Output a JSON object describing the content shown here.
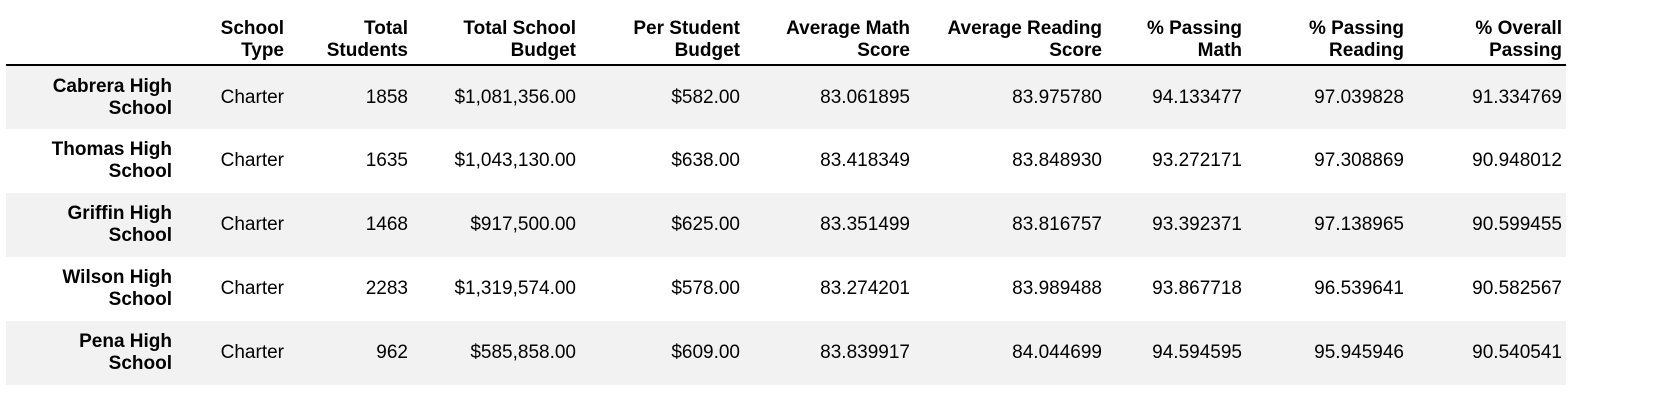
{
  "columns": [
    {
      "line1": "",
      "line2": ""
    },
    {
      "line1": "School",
      "line2": "Type"
    },
    {
      "line1": "Total",
      "line2": "Students"
    },
    {
      "line1": "Total School",
      "line2": "Budget"
    },
    {
      "line1": "Per Student",
      "line2": "Budget"
    },
    {
      "line1": "Average Math",
      "line2": "Score"
    },
    {
      "line1": "Average Reading",
      "line2": "Score"
    },
    {
      "line1": "% Passing",
      "line2": "Math"
    },
    {
      "line1": "% Passing",
      "line2": "Reading"
    },
    {
      "line1": "% Overall",
      "line2": "Passing"
    }
  ],
  "rows": [
    {
      "name1": "Cabrera High",
      "name2": "School",
      "type": "Charter",
      "students": "1858",
      "budget": "$1,081,356.00",
      "per_student": "$582.00",
      "math": "83.061895",
      "reading": "83.975780",
      "pass_math": "94.133477",
      "pass_reading": "97.039828",
      "overall": "91.334769"
    },
    {
      "name1": "Thomas High",
      "name2": "School",
      "type": "Charter",
      "students": "1635",
      "budget": "$1,043,130.00",
      "per_student": "$638.00",
      "math": "83.418349",
      "reading": "83.848930",
      "pass_math": "93.272171",
      "pass_reading": "97.308869",
      "overall": "90.948012"
    },
    {
      "name1": "Griffin High",
      "name2": "School",
      "type": "Charter",
      "students": "1468",
      "budget": "$917,500.00",
      "per_student": "$625.00",
      "math": "83.351499",
      "reading": "83.816757",
      "pass_math": "93.392371",
      "pass_reading": "97.138965",
      "overall": "90.599455"
    },
    {
      "name1": "Wilson High",
      "name2": "School",
      "type": "Charter",
      "students": "2283",
      "budget": "$1,319,574.00",
      "per_student": "$578.00",
      "math": "83.274201",
      "reading": "83.989488",
      "pass_math": "93.867718",
      "pass_reading": "96.539641",
      "overall": "90.582567"
    },
    {
      "name1": "Pena High",
      "name2": "School",
      "type": "Charter",
      "students": "962",
      "budget": "$585,858.00",
      "per_student": "$609.00",
      "math": "83.839917",
      "reading": "84.044699",
      "pass_math": "94.594595",
      "pass_reading": "95.945946",
      "overall": "90.540541"
    }
  ]
}
